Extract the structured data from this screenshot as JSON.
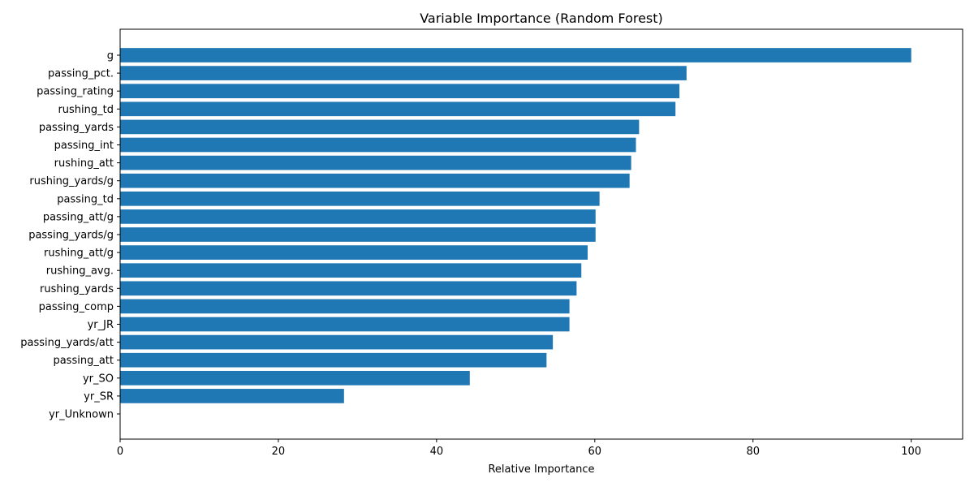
{
  "chart_data": {
    "type": "bar",
    "orientation": "horizontal",
    "title": "Variable Importance (Random Forest)",
    "xlabel": "Relative Importance",
    "ylabel": "",
    "xlim": [
      0,
      106.5
    ],
    "xticks": [
      0,
      20,
      40,
      60,
      80,
      100
    ],
    "xtick_labels": [
      "0",
      "20",
      "40",
      "60",
      "80",
      "100"
    ],
    "grid": false,
    "bar_color": "#1f77b4",
    "categories": [
      "g",
      "passing_pct.",
      "passing_rating",
      "rushing_td",
      "passing_yards",
      "passing_int",
      "rushing_att",
      "rushing_yards/g",
      "passing_td",
      "passing_att/g",
      "passing_yards/g",
      "rushing_att/g",
      "rushing_avg.",
      "rushing_yards",
      "passing_comp",
      "yr_JR",
      "passing_yards/att",
      "passing_att",
      "yr_SO",
      "yr_SR",
      "yr_Unknown"
    ],
    "values": [
      100,
      71.6,
      70.7,
      70.2,
      65.6,
      65.2,
      64.6,
      64.4,
      60.6,
      60.1,
      60.1,
      59.1,
      58.3,
      57.7,
      56.8,
      56.8,
      54.7,
      53.9,
      44.2,
      28.3,
      0
    ]
  }
}
